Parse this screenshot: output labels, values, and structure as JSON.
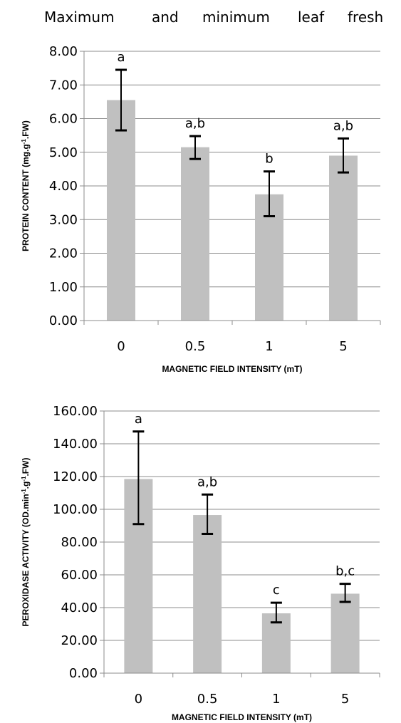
{
  "title": {
    "words": [
      "Maximum",
      "and",
      "minimum",
      "leaf",
      "fresh"
    ]
  },
  "chart_data": [
    {
      "type": "bar",
      "xlabel": "MAGNETIC FIELD INTENSITY (mT)",
      "ylabel": "PROTEIN CONTENT (mg.g-1.FW)",
      "ylabel_parts": [
        "PROTEIN CONTENT (mg.g",
        "-1",
        ".FW)"
      ],
      "ylim": [
        0,
        8
      ],
      "yticks": [
        "0.00",
        "1.00",
        "2.00",
        "3.00",
        "4.00",
        "5.00",
        "6.00",
        "7.00",
        "8.00"
      ],
      "categories": [
        "0",
        "0.5",
        "1",
        "5"
      ],
      "values": [
        6.55,
        5.15,
        3.75,
        4.9
      ],
      "error_low": [
        5.65,
        4.8,
        3.1,
        4.4
      ],
      "error_high": [
        7.45,
        5.48,
        4.43,
        5.41
      ],
      "group_labels": [
        "a",
        "a,b",
        "b",
        "a,b"
      ],
      "bar_color": "#c0c0c0",
      "grid": true
    },
    {
      "type": "bar",
      "xlabel": "MAGNETIC FIELD INTENSITY (mT)",
      "ylabel": "PEROXIDASE ACTIVITY (OD.min-1.g-1.FW)",
      "ylabel_parts": [
        "PEROXIDASE ACTIVITY (OD.min",
        "-1",
        ".g",
        "-1",
        ".FW)"
      ],
      "ylim": [
        0,
        160
      ],
      "yticks": [
        "0.00",
        "20.00",
        "40.00",
        "60.00",
        "80.00",
        "100.00",
        "120.00",
        "140.00",
        "160.00"
      ],
      "categories": [
        "0",
        "0.5",
        "1",
        "5"
      ],
      "values": [
        118.5,
        96.5,
        36.5,
        48.5
      ],
      "error_low": [
        91,
        85,
        31,
        43.5
      ],
      "error_high": [
        147.5,
        109,
        43,
        54.5
      ],
      "group_labels": [
        "a",
        "a,b",
        "c",
        "b,c"
      ],
      "bar_color": "#c0c0c0",
      "grid": true
    }
  ]
}
